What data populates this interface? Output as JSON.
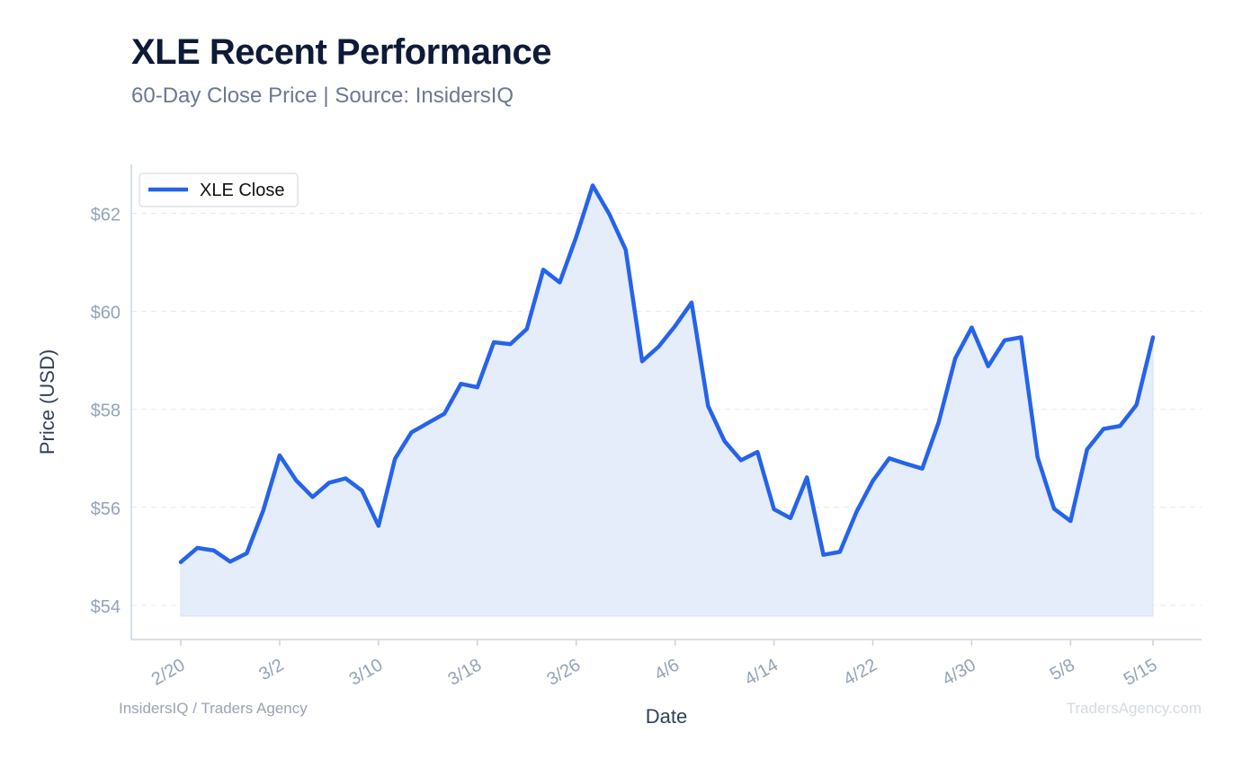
{
  "header": {
    "title": "XLE Recent Performance",
    "subtitle": "60-Day Close Price | Source: InsidersIQ"
  },
  "footer": {
    "left": "InsidersIQ / Traders Agency",
    "right": "TradersAgency.com"
  },
  "colors": {
    "line": "#2563eb",
    "fill": "#e5edfb",
    "axis": "#cbd5e1",
    "grid": "#e5e9f0",
    "tick_label": "#94a3b8",
    "axis_title": "#334155"
  },
  "chart_data": {
    "type": "line",
    "title": "XLE Recent Performance",
    "subtitle": "60-Day Close Price | Source: InsidersIQ",
    "xlabel": "Date",
    "ylabel": "Price (USD)",
    "ylim": [
      53.3,
      63.0
    ],
    "yticks": [
      54,
      56,
      58,
      60,
      62
    ],
    "ytick_labels": [
      "$54",
      "$56",
      "$58",
      "$60",
      "$62"
    ],
    "xticks": [
      {
        "index": 0,
        "label": "2/20"
      },
      {
        "index": 6,
        "label": "3/2"
      },
      {
        "index": 12,
        "label": "3/10"
      },
      {
        "index": 18,
        "label": "3/18"
      },
      {
        "index": 24,
        "label": "3/26"
      },
      {
        "index": 30,
        "label": "4/6"
      },
      {
        "index": 36,
        "label": "4/14"
      },
      {
        "index": 42,
        "label": "4/22"
      },
      {
        "index": 48,
        "label": "4/30"
      },
      {
        "index": 54,
        "label": "5/8"
      },
      {
        "index": 59,
        "label": "5/15"
      }
    ],
    "fill_baseline": 53.78,
    "grid": true,
    "legend_position": "top-left",
    "series": [
      {
        "name": "XLE Close",
        "values": [
          54.88,
          55.17,
          55.12,
          54.89,
          55.06,
          55.93,
          57.06,
          56.55,
          56.21,
          56.5,
          56.59,
          56.34,
          55.62,
          56.99,
          57.53,
          57.72,
          57.91,
          58.52,
          58.45,
          59.37,
          59.33,
          59.64,
          60.85,
          60.59,
          61.52,
          62.57,
          61.99,
          61.26,
          58.98,
          59.28,
          59.7,
          60.18,
          58.07,
          57.35,
          56.96,
          57.13,
          55.96,
          55.78,
          56.61,
          55.03,
          55.09,
          55.9,
          56.54,
          57.0,
          56.89,
          56.79,
          57.74,
          59.04,
          59.67,
          58.88,
          59.41,
          59.47,
          57.02,
          55.97,
          55.72,
          57.18,
          57.6,
          57.66,
          58.09,
          59.47
        ]
      }
    ]
  }
}
